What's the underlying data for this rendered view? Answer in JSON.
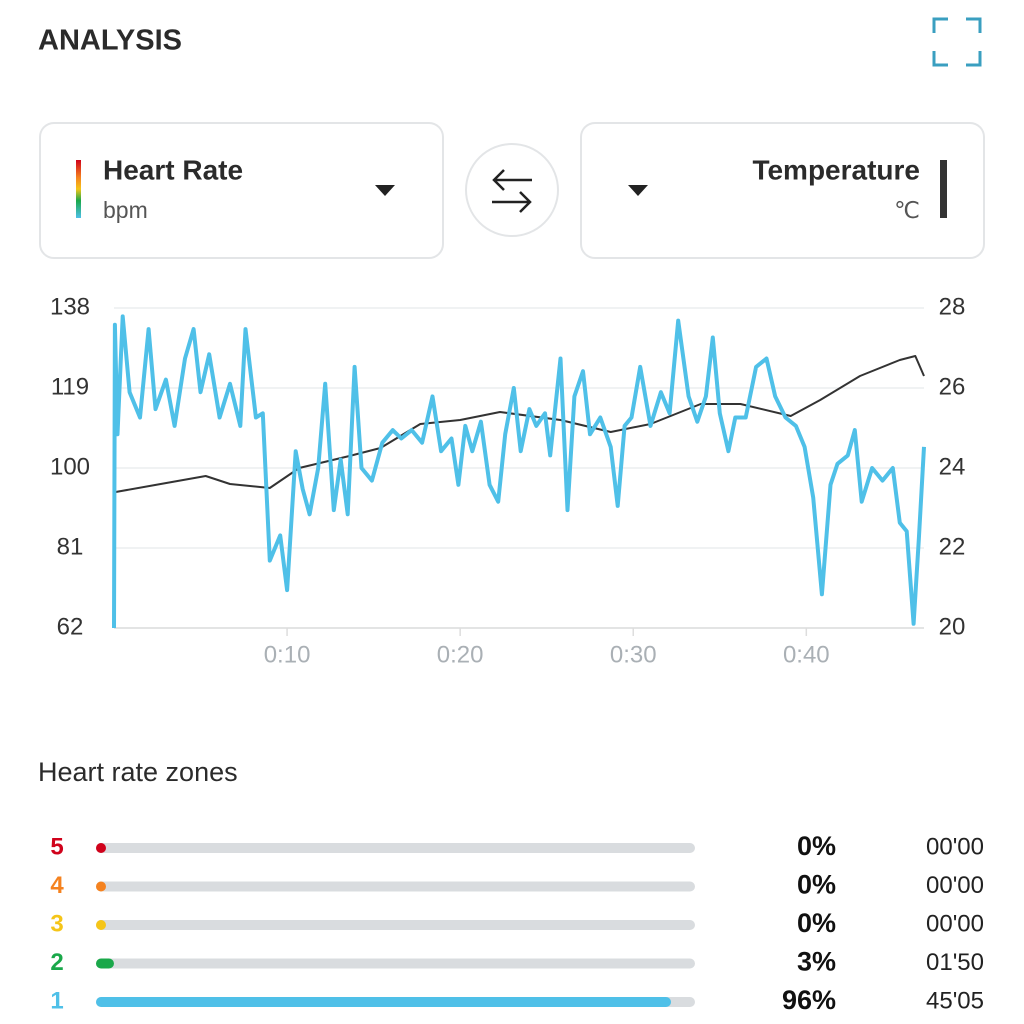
{
  "header": {
    "title": "ANALYSIS"
  },
  "chart_data": {
    "type": "line",
    "series": [
      {
        "name": "Heart Rate",
        "unit": "bpm",
        "color": "#4fc0e8",
        "x": [
          0,
          0.05,
          0.2,
          0.5,
          0.9,
          1.5,
          2.0,
          2.4,
          3.0,
          3.5,
          4.1,
          4.6,
          5.0,
          5.5,
          6.1,
          6.7,
          7.3,
          7.6,
          8.2,
          8.6,
          9.0,
          9.6,
          10.0,
          10.5,
          10.9,
          11.3,
          11.8,
          12.2,
          12.7,
          13.1,
          13.5,
          13.9,
          14.3,
          14.9,
          15.5,
          16.1,
          16.6,
          17.2,
          17.8,
          18.4,
          18.9,
          19.5,
          19.9,
          20.3,
          20.7,
          21.2,
          21.7,
          22.2,
          22.6,
          23.1,
          23.5,
          24.0,
          24.4,
          24.9,
          25.2,
          25.8,
          26.2,
          26.6,
          27.1,
          27.5,
          28.1,
          28.7,
          29.1,
          29.5,
          29.9,
          30.4,
          31.0,
          31.6,
          32.1,
          32.6,
          33.2,
          33.7,
          34.2,
          34.6,
          35.0,
          35.5,
          35.9,
          36.5,
          37.1,
          37.7,
          38.2,
          38.8,
          39.4,
          39.9,
          40.4,
          40.9,
          41.4,
          41.8,
          42.4,
          42.8,
          43.2,
          43.8,
          44.4,
          45.0,
          45.4,
          45.8,
          46.2,
          46.5,
          46.8
        ],
        "values": [
          62,
          134,
          108,
          136,
          118,
          112,
          133,
          114,
          121,
          110,
          126,
          133,
          118,
          127,
          112,
          120,
          110,
          133,
          112,
          113,
          78,
          84,
          71,
          104,
          95,
          89,
          100,
          120,
          90,
          102,
          89,
          124,
          100,
          97,
          106,
          109,
          107,
          109,
          106,
          117,
          104,
          107,
          96,
          110,
          104,
          111,
          96,
          92,
          108,
          119,
          104,
          114,
          110,
          113,
          103,
          126,
          90,
          117,
          123,
          108,
          112,
          105,
          91,
          110,
          112,
          124,
          110,
          118,
          113,
          135,
          117,
          111,
          117,
          131,
          113,
          104,
          112,
          112,
          124,
          126,
          117,
          112,
          110,
          105,
          93,
          70,
          96,
          101,
          103,
          109,
          92,
          100,
          97,
          100,
          87,
          85,
          63,
          83,
          105
        ]
      },
      {
        "name": "Temperature",
        "unit": "℃",
        "color": "#333333",
        "axis": "y2",
        "x": [
          0.1,
          2.7,
          5.3,
          6.7,
          9.0,
          10.7,
          13.6,
          15.4,
          17.7,
          20.0,
          22.3,
          25.8,
          28.7,
          31.0,
          33.9,
          36.2,
          39.1,
          40.8,
          43.1,
          45.4,
          46.3,
          46.8
        ],
        "values": [
          23.4,
          23.6,
          23.8,
          23.6,
          23.5,
          24.0,
          24.3,
          24.5,
          25.1,
          25.2,
          25.4,
          25.2,
          24.9,
          25.1,
          25.6,
          25.6,
          25.3,
          25.7,
          26.3,
          26.7,
          26.8,
          26.3
        ]
      }
    ],
    "xlim": [
      0,
      46.8
    ],
    "xticks": [
      {
        "value": 10,
        "label": "0:10"
      },
      {
        "value": 20,
        "label": "0:20"
      },
      {
        "value": 30,
        "label": "0:30"
      },
      {
        "value": 40,
        "label": "0:40"
      }
    ],
    "ylim": [
      62,
      138
    ],
    "yticks": [
      62,
      81,
      100,
      119,
      138
    ],
    "y2lim": [
      20,
      28
    ],
    "y2ticks": [
      20,
      22,
      24,
      26,
      28
    ],
    "grid": true
  },
  "zones": {
    "title": "Heart rate zones",
    "names": [
      "5",
      "4",
      "3",
      "2",
      "1"
    ],
    "colors": [
      "#d0021b",
      "#f5821f",
      "#f5c518",
      "#1aa84a",
      "#4fc0e8"
    ],
    "values": [
      0,
      0,
      0,
      3,
      96
    ],
    "value_labels": [
      "0%",
      "0%",
      "0%",
      "3%",
      "96%"
    ],
    "times": [
      "00'00",
      "00'00",
      "00'00",
      "01'50",
      "45'05"
    ]
  }
}
